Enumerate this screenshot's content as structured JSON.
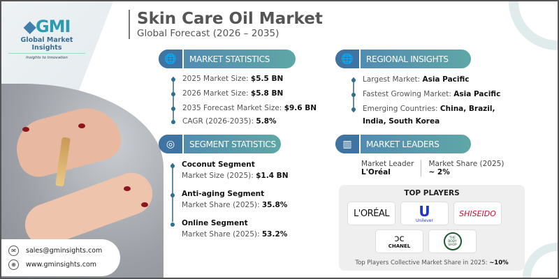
{
  "brand": {
    "logo_text": "GMI",
    "name": "Global Market Insights",
    "tagline": "Insights to Innovation"
  },
  "header": {
    "title": "Skin Care Oil Market",
    "subtitle": "Global Forecast (2026 – 2035)"
  },
  "market_statistics": {
    "label": "MARKET STATISTICS",
    "items": [
      {
        "k": "2025 Market Size: ",
        "v": "$5.5 BN"
      },
      {
        "k": "2026 Market Size: ",
        "v": "$5.8 BN"
      },
      {
        "k": "2035 Forecast Market Size: ",
        "v": "$9.6 BN"
      },
      {
        "k": "CAGR (2026-2035): ",
        "v": "5.8%"
      }
    ]
  },
  "regional_insights": {
    "label": "REGIONAL INSIGHTS",
    "items": [
      {
        "k": "Largest Market: ",
        "v": "Asia Pacific"
      },
      {
        "k": "Fastest Growing Market: ",
        "v": "Asia Pacific"
      },
      {
        "k": "Emerging Countries: ",
        "v": "China, Brazil, India, South Korea"
      }
    ]
  },
  "segment_statistics": {
    "label": "SEGMENT STATISTICS",
    "items": [
      {
        "name": "Coconut Segment",
        "k": "Market Size (2025): ",
        "v": "$1.4 BN"
      },
      {
        "name": "Anti-aging Segment",
        "k": "Market Share (2025): ",
        "v": "35.8%"
      },
      {
        "name": "Online Segment",
        "k": "Market Share (2025): ",
        "v": "53.2%"
      }
    ]
  },
  "market_leaders": {
    "label": "MARKET LEADERS",
    "leader_label": "Market Leader",
    "leader": "L'Oréal",
    "share_label": "Market Share (2025)",
    "share": "~ 2%"
  },
  "top_players": {
    "title": "TOP PLAYERS",
    "logos": [
      "L'ORÉAL",
      "Unilever",
      "SHISEIDO",
      "CHANEL",
      "THE BODY SHOP"
    ],
    "footer_label": "Top Players Collective Market Share in 2025: ",
    "footer_value": "~10%"
  },
  "contact": {
    "email": "sales@gminsights.com",
    "website": "www.gminsights.com"
  },
  "colors": {
    "accent_blue": "#4f86b4",
    "accent_teal": "#5fa7a6",
    "shiseido_red": "#c8102e"
  }
}
